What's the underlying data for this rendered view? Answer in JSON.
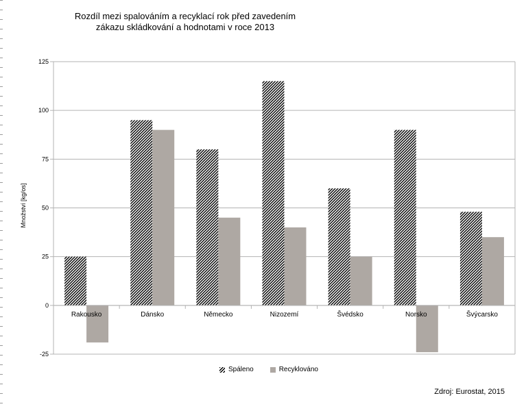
{
  "chart_data": {
    "type": "bar",
    "title_lines": [
      "Rozdíl mezi spalováním a recyklací rok před zavedením",
      "zákazu skládkování a hodnotami v roce 2013"
    ],
    "ylabel": "Množství [kg/os]",
    "categories": [
      "Rakousko",
      "Dánsko",
      "Německo",
      "Nizozemí",
      "Švédsko",
      "Norsko",
      "Švýcarsko"
    ],
    "series": [
      {
        "name": "Spáleno",
        "values": [
          25,
          95,
          80,
          115,
          60,
          90,
          48
        ],
        "pattern": "hatch",
        "color": "#000000"
      },
      {
        "name": "Recyklováno",
        "values": [
          -19,
          90,
          45,
          40,
          25,
          -24,
          35
        ],
        "pattern": "solid",
        "color": "#aea8a3"
      }
    ],
    "ylim": [
      -25,
      125
    ],
    "yticks": [
      -25,
      0,
      25,
      50,
      75,
      100,
      125
    ],
    "grid": true,
    "legend": "bottom-center",
    "source": "Zdroj: Eurostat, 2015"
  }
}
